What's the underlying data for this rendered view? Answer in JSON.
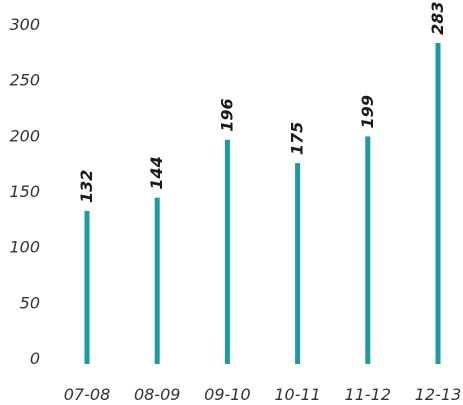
{
  "chart_data": {
    "type": "bar",
    "categories": [
      "07-08",
      "08-09",
      "09-10",
      "10-11",
      "11-12",
      "12-13"
    ],
    "values": [
      132,
      144,
      196,
      175,
      199,
      283
    ],
    "data_labels": [
      "132",
      "144",
      "196",
      "175",
      "199",
      "283"
    ],
    "yticks": [
      "0",
      "50",
      "100",
      "150",
      "200",
      "250",
      "300"
    ],
    "ytick_values": [
      0,
      50,
      100,
      150,
      200,
      250,
      300
    ],
    "ylim": [
      0,
      300
    ],
    "title": "",
    "xlabel": "",
    "ylabel": "",
    "grid": false,
    "legend": "none",
    "bar_color": "#1a9ba1"
  }
}
